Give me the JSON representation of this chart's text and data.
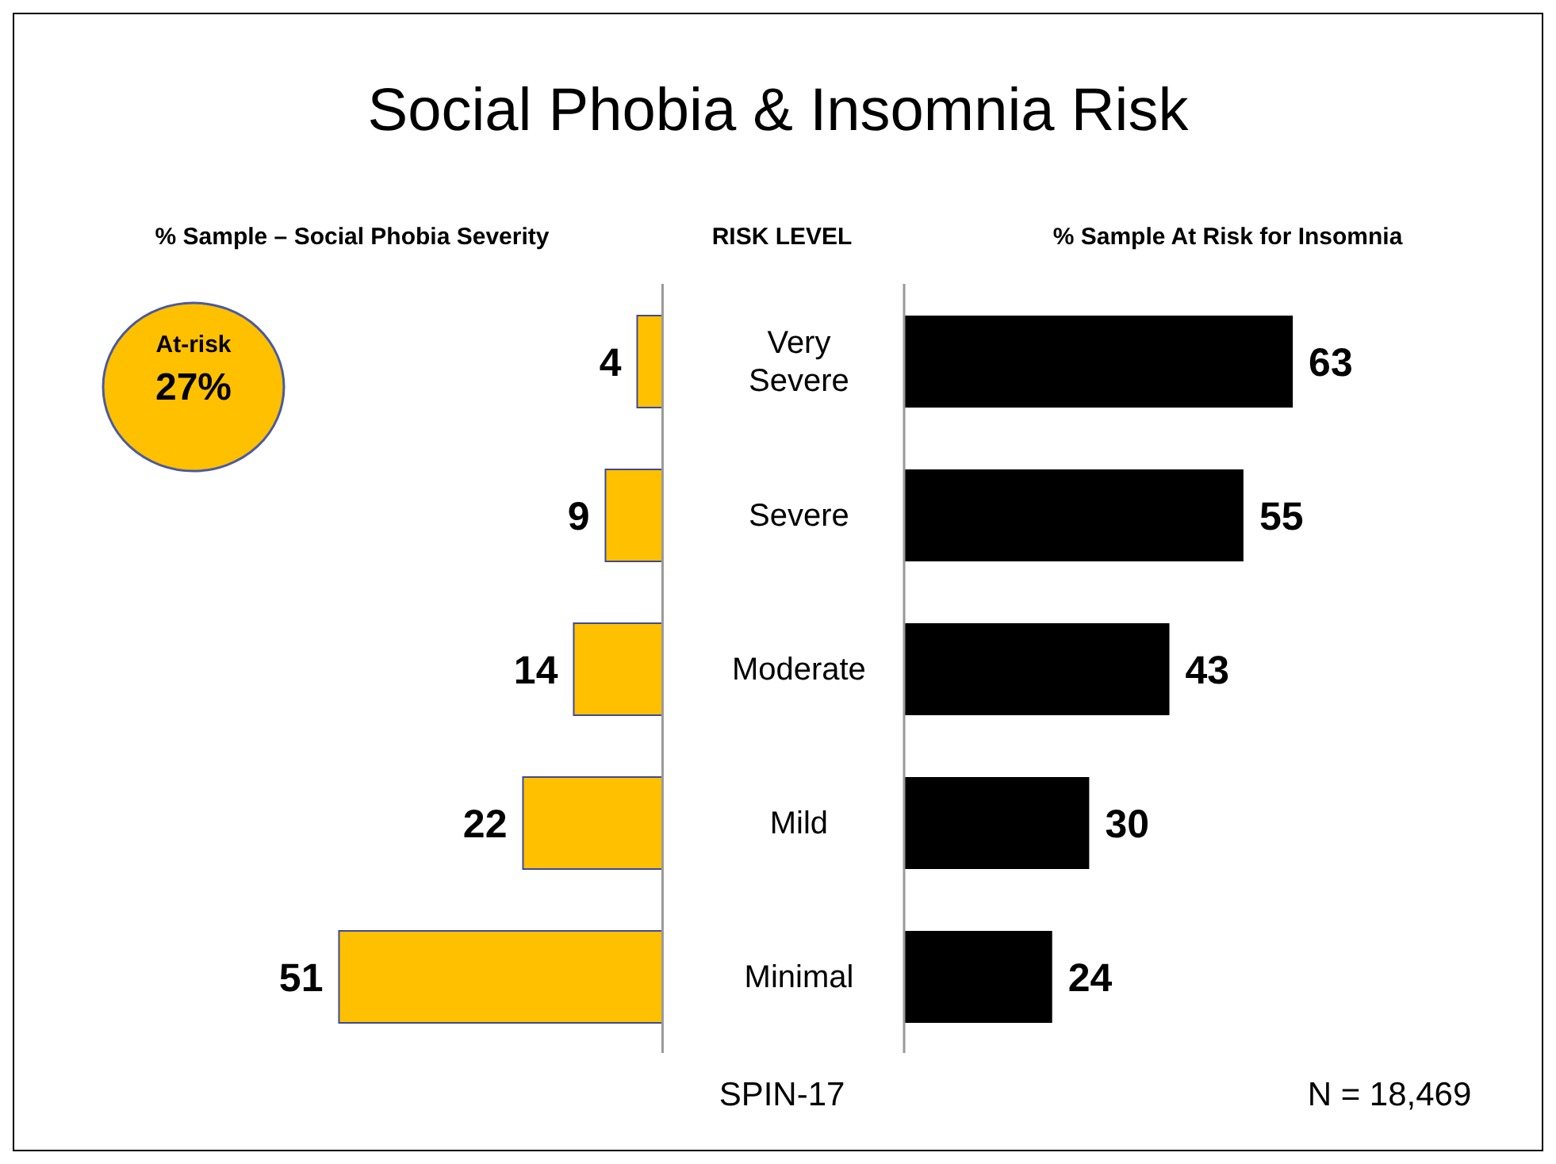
{
  "chart_data": [
    {
      "type": "bar",
      "orientation": "horizontal",
      "title": "Social Phobia & Insomnia Risk",
      "xlabel": "% Sample – Social Phobia Severity",
      "ylabel": "RISK LEVEL",
      "categories": [
        "Very Severe",
        "Severe",
        "Moderate",
        "Mild",
        "Minimal"
      ],
      "values": [
        4,
        9,
        14,
        22,
        51
      ],
      "color": "#ffc000",
      "data_labels": true,
      "tick_labels": "y",
      "annotations": [
        "At-risk",
        "27%"
      ]
    },
    {
      "type": "bar",
      "orientation": "horizontal",
      "xlabel": "% Sample At Risk for Insomnia",
      "categories": [
        null,
        null,
        null,
        null,
        null
      ],
      "values": [
        63,
        55,
        43,
        30,
        24
      ],
      "color": "#000000",
      "data_labels": true,
      "tick_labels": false,
      "annotations": [
        "SPIN-17",
        "N = 18,469"
      ]
    }
  ]
}
